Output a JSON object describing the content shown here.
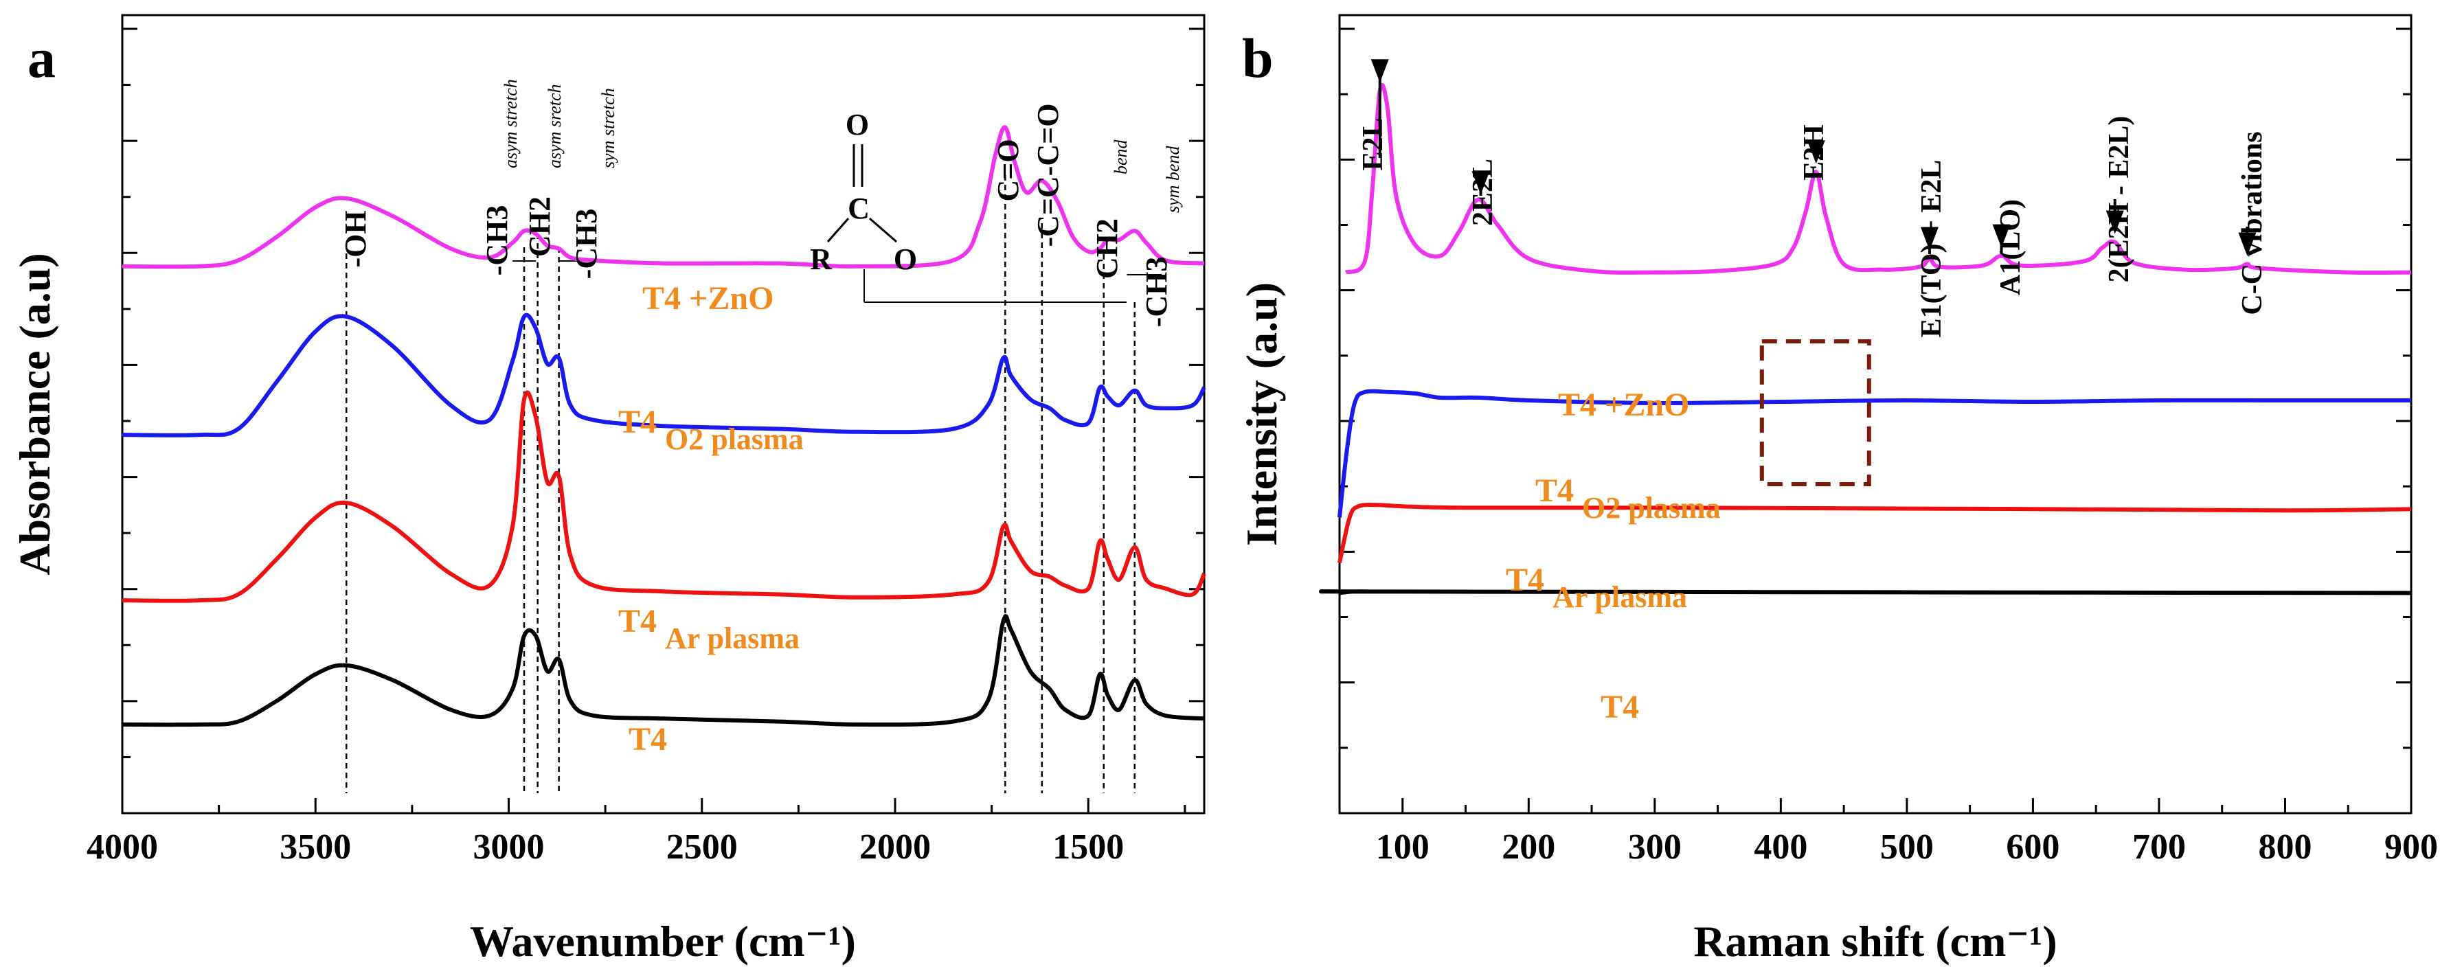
{
  "colors": {
    "T4": "#000000",
    "T4_Ar": "#ee1111",
    "T4_O2": "#1a1aee",
    "T4_ZnO": "#ee33ee",
    "series_label": "#f08a1c",
    "marker_box": "#7a1b0c"
  },
  "chart_data": [
    {
      "type": "line",
      "panel_label": "a",
      "xlabel": "Wavenumber (cm⁻¹)",
      "ylabel": "Absorbance (a.u)",
      "xlim": [
        4000,
        1200
      ],
      "x_reversed": true,
      "xticks": [
        "4000",
        "3500",
        "3000",
        "2500",
        "2000",
        "1500"
      ],
      "yticks_labeled": false,
      "series": [
        {
          "name": "T4",
          "label_main": "T4",
          "label_sub": "",
          "color": "#000000",
          "offset": 0,
          "points": [
            [
              4000,
              0.0
            ],
            [
              3800,
              0.0
            ],
            [
              3700,
              0.01
            ],
            [
              3600,
              0.08
            ],
            [
              3500,
              0.17
            ],
            [
              3420,
              0.2
            ],
            [
              3300,
              0.15
            ],
            [
              3150,
              0.05
            ],
            [
              3050,
              0.03
            ],
            [
              2990,
              0.12
            ],
            [
              2960,
              0.3
            ],
            [
              2930,
              0.3
            ],
            [
              2900,
              0.18
            ],
            [
              2870,
              0.22
            ],
            [
              2840,
              0.08
            ],
            [
              2780,
              0.03
            ],
            [
              2600,
              0.02
            ],
            [
              2300,
              0.01
            ],
            [
              2100,
              0.0
            ],
            [
              1850,
              0.01
            ],
            [
              1760,
              0.08
            ],
            [
              1720,
              0.35
            ],
            [
              1700,
              0.32
            ],
            [
              1650,
              0.18
            ],
            [
              1600,
              0.12
            ],
            [
              1560,
              0.05
            ],
            [
              1500,
              0.03
            ],
            [
              1470,
              0.17
            ],
            [
              1450,
              0.1
            ],
            [
              1420,
              0.05
            ],
            [
              1380,
              0.15
            ],
            [
              1350,
              0.07
            ],
            [
              1300,
              0.03
            ],
            [
              1200,
              0.02
            ]
          ]
        },
        {
          "name": "T4 Ar plasma",
          "label_main": "T4",
          "label_sub": "Ar plasma",
          "color": "#ee1111",
          "offset": 0.42,
          "points": [
            [
              4000,
              0.0
            ],
            [
              3800,
              0.0
            ],
            [
              3700,
              0.02
            ],
            [
              3600,
              0.14
            ],
            [
              3500,
              0.28
            ],
            [
              3420,
              0.33
            ],
            [
              3300,
              0.25
            ],
            [
              3150,
              0.09
            ],
            [
              3050,
              0.05
            ],
            [
              2990,
              0.25
            ],
            [
              2960,
              0.68
            ],
            [
              2930,
              0.62
            ],
            [
              2900,
              0.4
            ],
            [
              2870,
              0.42
            ],
            [
              2840,
              0.15
            ],
            [
              2780,
              0.05
            ],
            [
              2600,
              0.03
            ],
            [
              2300,
              0.02
            ],
            [
              2100,
              0.01
            ],
            [
              1850,
              0.02
            ],
            [
              1760,
              0.06
            ],
            [
              1720,
              0.25
            ],
            [
              1700,
              0.2
            ],
            [
              1650,
              0.1
            ],
            [
              1600,
              0.08
            ],
            [
              1560,
              0.05
            ],
            [
              1500,
              0.04
            ],
            [
              1470,
              0.2
            ],
            [
              1450,
              0.14
            ],
            [
              1420,
              0.07
            ],
            [
              1380,
              0.18
            ],
            [
              1350,
              0.07
            ],
            [
              1300,
              0.04
            ],
            [
              1230,
              0.02
            ],
            [
              1200,
              0.09
            ]
          ]
        },
        {
          "name": "T4O2 plasma",
          "label_main": "T4",
          "label_sub": "O2 plasma",
          "color": "#1a1aee",
          "offset": 0.98,
          "points": [
            [
              4000,
              0.0
            ],
            [
              3800,
              0.0
            ],
            [
              3700,
              0.02
            ],
            [
              3600,
              0.18
            ],
            [
              3500,
              0.35
            ],
            [
              3420,
              0.4
            ],
            [
              3300,
              0.3
            ],
            [
              3150,
              0.1
            ],
            [
              3050,
              0.05
            ],
            [
              2990,
              0.25
            ],
            [
              2960,
              0.4
            ],
            [
              2930,
              0.36
            ],
            [
              2900,
              0.24
            ],
            [
              2870,
              0.26
            ],
            [
              2840,
              0.1
            ],
            [
              2780,
              0.05
            ],
            [
              2600,
              0.03
            ],
            [
              2300,
              0.02
            ],
            [
              2100,
              0.01
            ],
            [
              1850,
              0.02
            ],
            [
              1760,
              0.1
            ],
            [
              1720,
              0.26
            ],
            [
              1700,
              0.2
            ],
            [
              1650,
              0.12
            ],
            [
              1600,
              0.09
            ],
            [
              1560,
              0.05
            ],
            [
              1500,
              0.04
            ],
            [
              1470,
              0.16
            ],
            [
              1450,
              0.13
            ],
            [
              1420,
              0.1
            ],
            [
              1380,
              0.15
            ],
            [
              1350,
              0.1
            ],
            [
              1300,
              0.09
            ],
            [
              1230,
              0.1
            ],
            [
              1200,
              0.16
            ]
          ]
        },
        {
          "name": "T4 +ZnO",
          "label_main": "T4 +ZnO",
          "label_sub": "",
          "color": "#ee33ee",
          "offset": 1.55,
          "points": [
            [
              4000,
              0.0
            ],
            [
              3800,
              0.0
            ],
            [
              3700,
              0.02
            ],
            [
              3600,
              0.1
            ],
            [
              3500,
              0.2
            ],
            [
              3420,
              0.23
            ],
            [
              3300,
              0.17
            ],
            [
              3150,
              0.06
            ],
            [
              3050,
              0.03
            ],
            [
              2990,
              0.08
            ],
            [
              2960,
              0.12
            ],
            [
              2930,
              0.11
            ],
            [
              2900,
              0.07
            ],
            [
              2870,
              0.06
            ],
            [
              2840,
              0.03
            ],
            [
              2780,
              0.02
            ],
            [
              2600,
              0.01
            ],
            [
              2300,
              0.01
            ],
            [
              2100,
              0.0
            ],
            [
              1850,
              0.02
            ],
            [
              1780,
              0.15
            ],
            [
              1740,
              0.38
            ],
            [
              1715,
              0.47
            ],
            [
              1690,
              0.35
            ],
            [
              1660,
              0.25
            ],
            [
              1620,
              0.29
            ],
            [
              1580,
              0.22
            ],
            [
              1540,
              0.1
            ],
            [
              1500,
              0.05
            ],
            [
              1470,
              0.06
            ],
            [
              1450,
              0.09
            ],
            [
              1420,
              0.09
            ],
            [
              1380,
              0.12
            ],
            [
              1350,
              0.08
            ],
            [
              1300,
              0.02
            ],
            [
              1200,
              0.01
            ]
          ]
        }
      ],
      "annotations": [
        {
          "text": "-OH",
          "x": 3420
        },
        {
          "text": "-CH3",
          "x": 2960,
          "note": "asym stretch"
        },
        {
          "text": "CH2",
          "x": 2925,
          "note": "asym sretch"
        },
        {
          "text": "-CH3",
          "x": 2870,
          "note": "sym stretch"
        },
        {
          "text": "C=O",
          "x": 1715
        },
        {
          "text": "-C=C-C=O",
          "x": 1620
        },
        {
          "text": "CH2",
          "x": 1460,
          "note": "bend"
        },
        {
          "text": "-CH3",
          "x": 1380,
          "note": "sym bend"
        }
      ],
      "structure": {
        "atoms": [
          "O",
          "C",
          "R",
          "O"
        ]
      }
    },
    {
      "type": "line",
      "panel_label": "b",
      "xlabel": "Raman shift (cm⁻¹)",
      "ylabel": "Intensity (a.u)",
      "xlim": [
        50,
        900
      ],
      "xticks": [
        "100",
        "200",
        "300",
        "400",
        "500",
        "600",
        "700",
        "800",
        "900"
      ],
      "yticks_labeled": false,
      "series": [
        {
          "name": "T4",
          "label_main": "T4",
          "label_sub": "",
          "color": "#000000",
          "offset": 0,
          "points": [
            [
              50,
              0.0
            ],
            [
              60,
              0.01
            ],
            [
              80,
              0.01
            ],
            [
              100,
              0.01
            ],
            [
              900,
              0.0
            ]
          ]
        },
        {
          "name": "T4 Ar plasma",
          "label_main": "T4",
          "label_sub": "Ar plasma",
          "color": "#ee1111",
          "offset": 0.6,
          "points": [
            [
              50,
              -0.38
            ],
            [
              58,
              -0.05
            ],
            [
              65,
              0.03
            ],
            [
              80,
              0.04
            ],
            [
              100,
              0.03
            ],
            [
              150,
              0.02
            ],
            [
              300,
              0.02
            ],
            [
              600,
              0.01
            ],
            [
              800,
              0.0
            ],
            [
              900,
              0.01
            ]
          ]
        },
        {
          "name": "T4 O2 plasma",
          "label_main": "T4",
          "label_sub": "O2 plasma",
          "color": "#1a1aee",
          "offset": 1.4,
          "points": [
            [
              50,
              -0.85
            ],
            [
              56,
              -0.35
            ],
            [
              62,
              -0.02
            ],
            [
              70,
              0.06
            ],
            [
              90,
              0.06
            ],
            [
              110,
              0.05
            ],
            [
              130,
              0.02
            ],
            [
              160,
              0.02
            ],
            [
              200,
              0.0
            ],
            [
              300,
              -0.02
            ],
            [
              400,
              -0.01
            ],
            [
              500,
              0.0
            ],
            [
              600,
              -0.01
            ],
            [
              700,
              0.0
            ],
            [
              800,
              0.0
            ],
            [
              900,
              0.0
            ]
          ]
        },
        {
          "name": "T4 +ZnO",
          "label_main": "T4 +ZnO",
          "label_sub": "",
          "color": "#ee33ee",
          "offset": 2.33,
          "points": [
            [
              55,
              0.0
            ],
            [
              70,
              0.08
            ],
            [
              76,
              0.6
            ],
            [
              82,
              1.32
            ],
            [
              88,
              1.2
            ],
            [
              95,
              0.55
            ],
            [
              110,
              0.2
            ],
            [
              130,
              0.12
            ],
            [
              145,
              0.3
            ],
            [
              160,
              0.53
            ],
            [
              175,
              0.35
            ],
            [
              200,
              0.1
            ],
            [
              250,
              0.01
            ],
            [
              300,
              0.0
            ],
            [
              350,
              0.01
            ],
            [
              395,
              0.06
            ],
            [
              410,
              0.18
            ],
            [
              420,
              0.45
            ],
            [
              428,
              0.73
            ],
            [
              436,
              0.4
            ],
            [
              450,
              0.06
            ],
            [
              480,
              0.02
            ],
            [
              510,
              0.04
            ],
            [
              518,
              0.1
            ],
            [
              526,
              0.04
            ],
            [
              560,
              0.05
            ],
            [
              575,
              0.12
            ],
            [
              590,
              0.05
            ],
            [
              640,
              0.08
            ],
            [
              655,
              0.18
            ],
            [
              665,
              0.22
            ],
            [
              680,
              0.07
            ],
            [
              720,
              0.02
            ],
            [
              760,
              0.03
            ],
            [
              770,
              0.06
            ],
            [
              780,
              0.03
            ],
            [
              850,
              0.0
            ],
            [
              900,
              0.0
            ]
          ]
        }
      ],
      "annotations": [
        {
          "text": "E2L",
          "x": 82
        },
        {
          "text": "2E2L",
          "x": 162
        },
        {
          "text": "E2H",
          "x": 428
        },
        {
          "text": "E1(TO) + E2L",
          "x": 518
        },
        {
          "text": "A1(LO)",
          "x": 575
        },
        {
          "text": "2(E2H - E2L)",
          "x": 665
        },
        {
          "text": "C-C vibrations",
          "x": 770
        }
      ],
      "highlight_box": {
        "x_range": [
          385,
          470
        ]
      }
    }
  ]
}
